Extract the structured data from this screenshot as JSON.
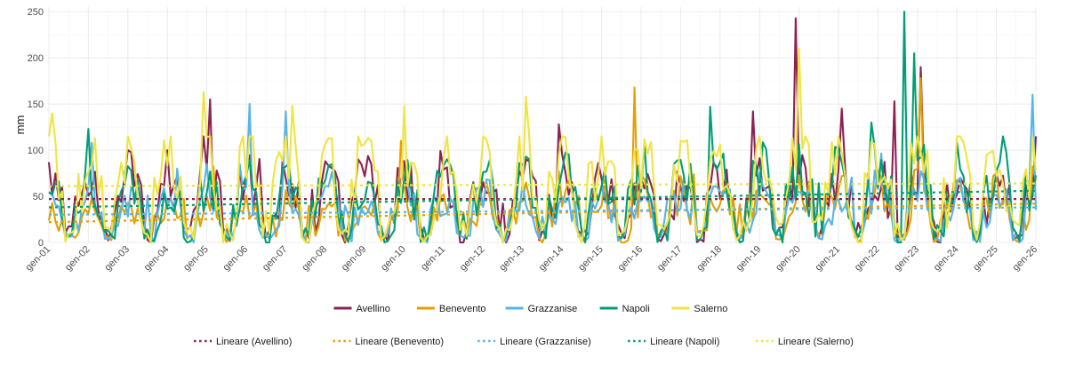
{
  "chart_data": {
    "type": "line",
    "title": "",
    "xlabel": "",
    "ylabel": "mm",
    "ylim": [
      0,
      255
    ],
    "y_ticks": [
      0,
      50,
      100,
      150,
      200,
      250
    ],
    "x_tick_labels": [
      "gen-01",
      "gen-02",
      "gen-03",
      "gen-04",
      "gen-05",
      "gen-06",
      "gen-07",
      "gen-08",
      "gen-09",
      "gen-10",
      "gen-11",
      "gen-12",
      "gen-13",
      "gen-14",
      "gen-15",
      "gen-16",
      "gen-17",
      "gen-18",
      "gen-19",
      "gen-20",
      "gen-21",
      "gen-22",
      "gen-23",
      "gen-24",
      "gen-25",
      "gen-26"
    ],
    "grid": true,
    "legend_position": "bottom",
    "series": [
      {
        "name": "Avellino",
        "color": "#8B2252",
        "trend": [
          47,
          47
        ],
        "peaks": [
          {
            "year": 4.05,
            "value": 155
          },
          {
            "year": 18.95,
            "value": 243
          },
          {
            "year": 20.1,
            "value": 145
          },
          {
            "year": 21.45,
            "value": 153
          },
          {
            "year": 22.05,
            "value": 190
          },
          {
            "year": 17.85,
            "value": 142
          },
          {
            "year": 12.9,
            "value": 128
          }
        ]
      },
      {
        "name": "Benevento",
        "color": "#E69F00",
        "trend": [
          22,
          42
        ],
        "peaks": [
          {
            "year": 14.85,
            "value": 168
          },
          {
            "year": 8.9,
            "value": 110
          },
          {
            "year": 22.05,
            "value": 178
          }
        ]
      },
      {
        "name": "Grazzanise",
        "color": "#56B4E9",
        "trend": [
          30,
          38
        ],
        "peaks": [
          {
            "year": 5.05,
            "value": 150
          },
          {
            "year": 6.0,
            "value": 142
          },
          {
            "year": 24.9,
            "value": 160
          },
          {
            "year": 1.1,
            "value": 108
          }
        ]
      },
      {
        "name": "Napoli",
        "color": "#009E73",
        "trend": [
          38,
          56
        ],
        "peaks": [
          {
            "year": 21.65,
            "value": 250
          },
          {
            "year": 21.95,
            "value": 205
          },
          {
            "year": 16.75,
            "value": 147
          },
          {
            "year": 1.0,
            "value": 123
          },
          {
            "year": 20.85,
            "value": 130
          }
        ]
      },
      {
        "name": "Salerno",
        "color": "#F0E442",
        "trend": [
          61,
          64
        ],
        "peaks": [
          {
            "year": 3.9,
            "value": 163
          },
          {
            "year": 6.2,
            "value": 148
          },
          {
            "year": 9.0,
            "value": 148
          },
          {
            "year": 12.1,
            "value": 158
          },
          {
            "year": 19.0,
            "value": 210
          },
          {
            "year": 0.05,
            "value": 140
          }
        ]
      }
    ],
    "legend_lines": [
      "Avellino",
      "Benevento",
      "Grazzanise",
      "Napoli",
      "Salerno"
    ],
    "legend_trends": [
      "Lineare (Avellino)",
      "Lineare (Benevento)",
      "Lineare (Grazzanise)",
      "Lineare (Napoli)",
      "Lineare (Salerno)"
    ]
  }
}
